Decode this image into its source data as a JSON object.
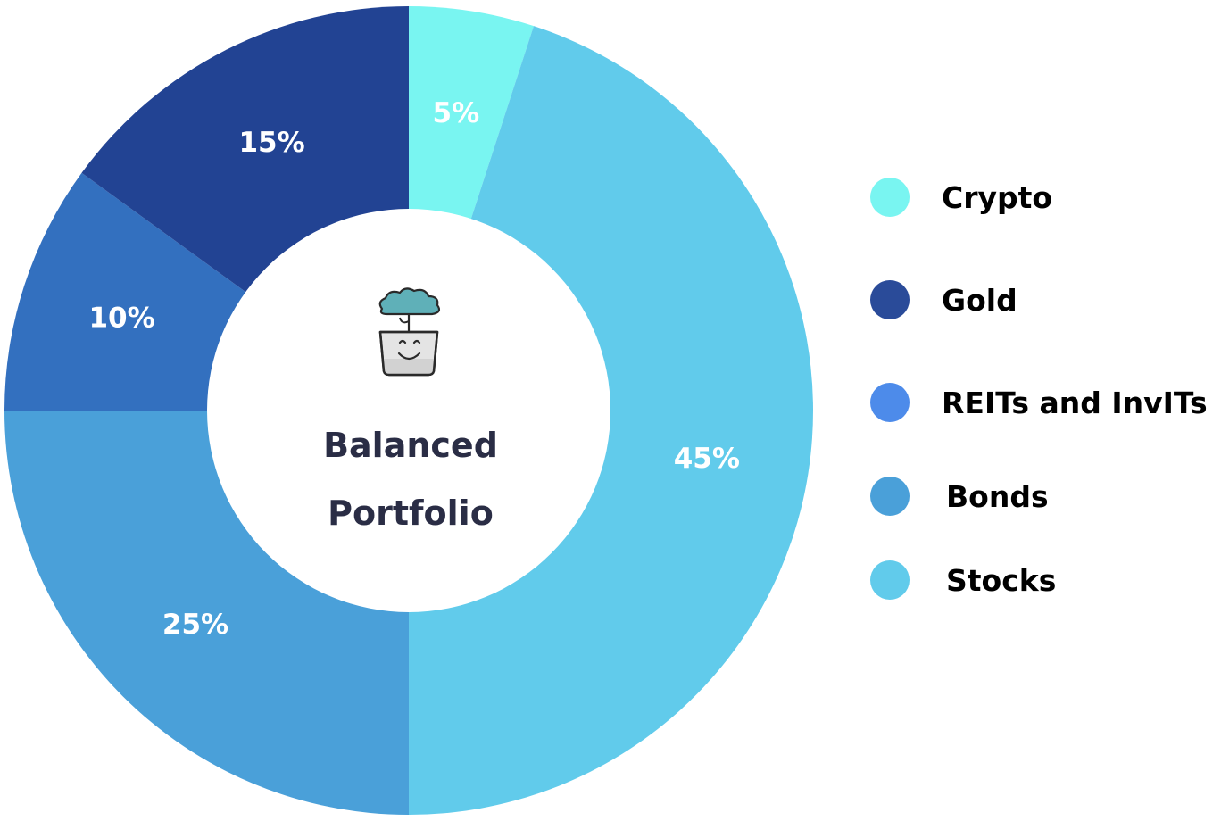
{
  "chart_data": {
    "type": "pie",
    "donut": true,
    "title": "",
    "center_label": [
      "Balanced",
      "Portfolio"
    ],
    "center_icon": "smiling-plant-pot-icon",
    "slices": [
      {
        "name": "Crypto",
        "value": 5,
        "label": "5%",
        "color": "#79f5f1"
      },
      {
        "name": "Stocks",
        "value": 45,
        "label": "45%",
        "color": "#61cbeb"
      },
      {
        "name": "Bonds",
        "value": 25,
        "label": "25%",
        "color": "#4aa0d9"
      },
      {
        "name": "REITs and InvITs",
        "value": 10,
        "label": "10%",
        "color": "#3370bf"
      },
      {
        "name": "Gold",
        "value": 15,
        "label": "15%",
        "color": "#224393"
      }
    ],
    "legend": {
      "position": "right",
      "items": [
        {
          "label": "Crypto",
          "color": "#79f5f1"
        },
        {
          "label": "Gold",
          "color": "#2a4b99"
        },
        {
          "label": "REITs and InvITs",
          "color": "#4d8bea"
        },
        {
          "label": "Bonds",
          "color": "#4aa0d9"
        },
        {
          "label": "Stocks",
          "color": "#61cbeb"
        }
      ]
    }
  }
}
